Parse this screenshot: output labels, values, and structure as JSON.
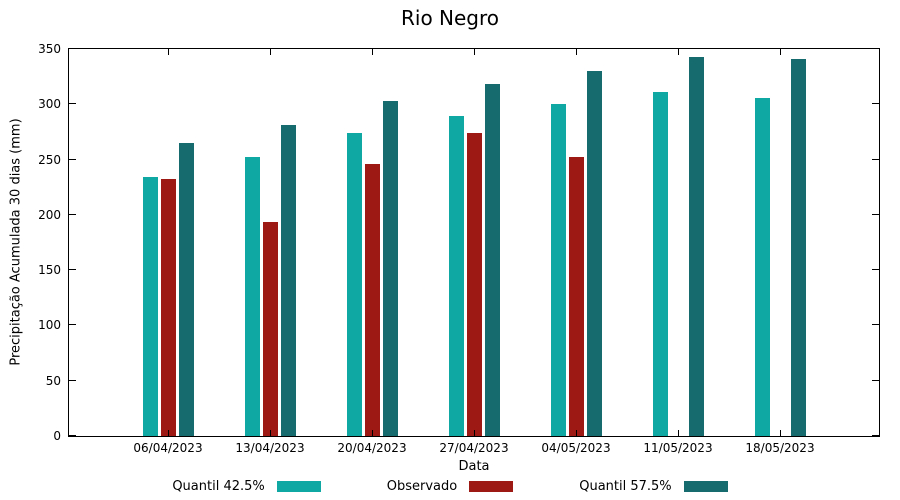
{
  "chart_data": {
    "type": "bar",
    "title": "Rio Negro",
    "xlabel": "Data",
    "ylabel": "Precipitação Acumulada 30 dias (mm)",
    "ylim": [
      0,
      350
    ],
    "yticks": [
      0,
      50,
      100,
      150,
      200,
      250,
      300,
      350
    ],
    "grid": false,
    "legend_position": "bottom",
    "categories": [
      "06/04/2023",
      "13/04/2023",
      "20/04/2023",
      "27/04/2023",
      "04/05/2023",
      "11/05/2023",
      "18/05/2023"
    ],
    "series": [
      {
        "name": "Quantil 42.5%",
        "color": "#0FA8A2",
        "values": [
          234,
          252,
          274,
          289,
          300,
          311,
          306
        ]
      },
      {
        "name": "Observado",
        "color": "#9C1A13",
        "values": [
          232,
          194,
          246,
          274,
          252,
          null,
          null
        ]
      },
      {
        "name": "Quantil 57.5%",
        "color": "#156B6E",
        "values": [
          265,
          281,
          303,
          318,
          330,
          343,
          341
        ]
      }
    ]
  }
}
